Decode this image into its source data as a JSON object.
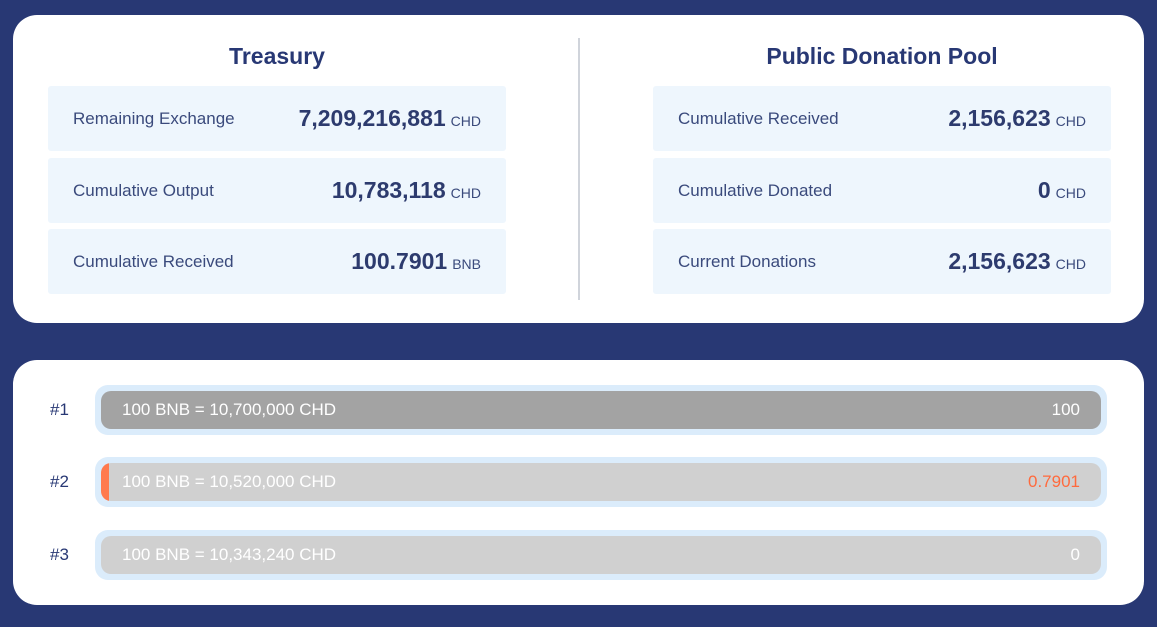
{
  "treasury": {
    "title": "Treasury",
    "rows": [
      {
        "label": "Remaining Exchange",
        "value": "7,209,216,881",
        "unit": "CHD"
      },
      {
        "label": "Cumulative Output",
        "value": "10,783,118",
        "unit": "CHD"
      },
      {
        "label": "Cumulative Received",
        "value": "100.7901",
        "unit": "BNB"
      }
    ]
  },
  "donation_pool": {
    "title": "Public Donation Pool",
    "rows": [
      {
        "label": "Cumulative Received",
        "value": "2,156,623",
        "unit": "CHD"
      },
      {
        "label": "Cumulative Donated",
        "value": "0",
        "unit": "CHD"
      },
      {
        "label": "Current Donations",
        "value": "2,156,623",
        "unit": "CHD"
      }
    ]
  },
  "tiers": [
    {
      "index": "#1",
      "rate": "100 BNB = 10,700,000 CHD",
      "amount": "100",
      "filled_fraction": 1.0,
      "state": "done"
    },
    {
      "index": "#2",
      "rate": "100 BNB = 10,520,000 CHD",
      "amount": "0.7901",
      "filled_fraction": 0.007901,
      "state": "active"
    },
    {
      "index": "#3",
      "rate": "100 BNB = 10,343,240 CHD",
      "amount": "0",
      "filled_fraction": 0.0,
      "state": "pending"
    }
  ],
  "colors": {
    "background": "#283874",
    "accent": "#ff7a4d",
    "bar_done": "#a3a3a3",
    "bar_pending": "#d0d0d0"
  }
}
